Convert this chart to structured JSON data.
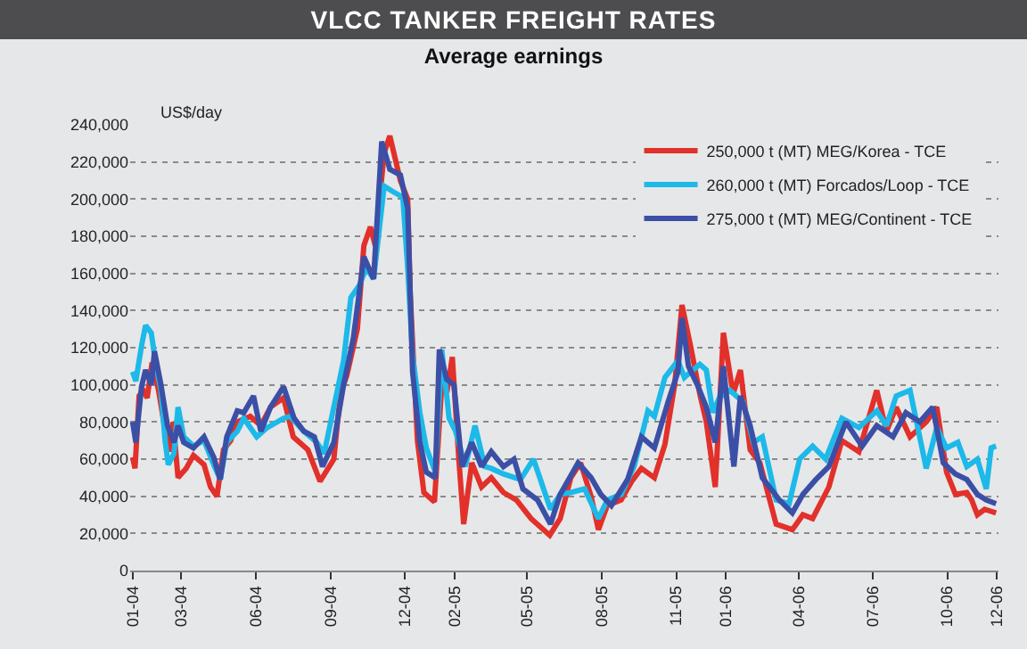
{
  "chart_data": {
    "type": "line",
    "title": "VLCC TANKER FREIGHT RATES",
    "subtitle": "Average earnings",
    "ylabel": "US$/day",
    "xlim": [
      "2003-12-29",
      "2006-12-03"
    ],
    "xticks": [
      {
        "value": "2004-01-01",
        "label": "01-04"
      },
      {
        "value": "2004-03-01",
        "label": "03-04"
      },
      {
        "value": "2004-06-01",
        "label": "06-04"
      },
      {
        "value": "2004-09-01",
        "label": "09-04"
      },
      {
        "value": "2004-12-01",
        "label": "12-04"
      },
      {
        "value": "2005-02-01",
        "label": "02-05"
      },
      {
        "value": "2005-05-01",
        "label": "05-05"
      },
      {
        "value": "2005-08-01",
        "label": "08-05"
      },
      {
        "value": "2005-11-01",
        "label": "11-05"
      },
      {
        "value": "2006-01-01",
        "label": "01-06"
      },
      {
        "value": "2006-04-01",
        "label": "04-06"
      },
      {
        "value": "2006-07-01",
        "label": "07-06"
      },
      {
        "value": "2006-10-01",
        "label": "10-06"
      },
      {
        "value": "2006-12-01",
        "label": "12-06"
      }
    ],
    "ylim": [
      0,
      240000
    ],
    "yticks": [
      {
        "value": 0,
        "label": "0"
      },
      {
        "value": 20000,
        "label": "20,000"
      },
      {
        "value": 40000,
        "label": "40,000"
      },
      {
        "value": 60000,
        "label": "60,000"
      },
      {
        "value": 80000,
        "label": "80,000"
      },
      {
        "value": 100000,
        "label": "100,000"
      },
      {
        "value": 120000,
        "label": "120,000"
      },
      {
        "value": 140000,
        "label": "140,000"
      },
      {
        "value": 160000,
        "label": "160,000"
      },
      {
        "value": 180000,
        "label": "180,000"
      },
      {
        "value": 200000,
        "label": "200,000"
      },
      {
        "value": 220000,
        "label": "220,000"
      },
      {
        "value": 240000,
        "label": "240,000"
      }
    ],
    "grid": "y",
    "legend": "top right",
    "marker": "none",
    "line_style": "solid",
    "series": [
      {
        "name": "250,000 t (MT) MEG/Korea - TCE",
        "color": "#e2302a",
        "x": [
          "2004-01-01",
          "2004-01-04",
          "2004-01-09",
          "2004-01-14",
          "2004-01-19",
          "2004-01-25",
          "2004-02-02",
          "2004-02-10",
          "2004-02-16",
          "2004-02-20",
          "2004-02-26",
          "2004-03-07",
          "2004-03-16",
          "2004-03-29",
          "2004-04-06",
          "2004-04-14",
          "2004-04-22",
          "2004-05-01",
          "2004-05-09",
          "2004-05-25",
          "2004-06-07",
          "2004-06-19",
          "2004-07-05",
          "2004-07-17",
          "2004-08-04",
          "2004-08-19",
          "2004-09-05",
          "2004-09-13",
          "2004-09-21",
          "2004-10-04",
          "2004-10-12",
          "2004-10-20",
          "2004-10-26",
          "2004-11-06",
          "2004-11-13",
          "2004-11-26",
          "2004-12-05",
          "2004-12-08",
          "2004-12-17",
          "2004-12-25",
          "2005-01-07",
          "2005-01-16",
          "2005-01-23",
          "2005-01-29",
          "2005-02-06",
          "2005-02-12",
          "2005-02-22",
          "2005-03-06",
          "2005-03-18",
          "2005-04-02",
          "2005-04-18",
          "2005-05-06",
          "2005-05-29",
          "2005-06-11",
          "2005-06-24",
          "2005-07-06",
          "2005-07-19",
          "2005-07-28",
          "2005-08-08",
          "2005-08-25",
          "2005-09-07",
          "2005-09-19",
          "2005-10-05",
          "2005-10-18",
          "2005-10-30",
          "2005-11-08",
          "2005-11-19",
          "2005-11-30",
          "2005-12-08",
          "2005-12-19",
          "2005-12-29",
          "2006-01-10",
          "2006-01-19",
          "2006-01-31",
          "2006-02-12",
          "2006-03-04",
          "2006-03-24",
          "2006-04-06",
          "2006-04-18",
          "2006-05-08",
          "2006-05-24",
          "2006-06-14",
          "2006-07-06",
          "2006-07-18",
          "2006-07-30",
          "2006-08-16",
          "2006-09-05",
          "2006-09-18",
          "2006-09-30",
          "2006-10-11",
          "2006-10-25",
          "2006-10-31",
          "2006-11-07",
          "2006-11-16",
          "2006-11-30"
        ],
        "values": [
          61000,
          55000,
          94000,
          97000,
          93000,
          112000,
          97000,
          76000,
          64000,
          80000,
          50000,
          55000,
          62000,
          57000,
          45000,
          40000,
          65000,
          70000,
          80000,
          83000,
          78000,
          88000,
          93000,
          72000,
          65000,
          48000,
          60000,
          95000,
          105000,
          130000,
          175000,
          185000,
          175000,
          225000,
          234000,
          210000,
          200000,
          150000,
          70000,
          42000,
          37000,
          100000,
          98000,
          115000,
          60000,
          25000,
          58000,
          45000,
          50000,
          42000,
          38000,
          28000,
          19000,
          28000,
          50000,
          58000,
          40000,
          22000,
          35000,
          38000,
          48000,
          55000,
          50000,
          68000,
          100000,
          143000,
          120000,
          95000,
          80000,
          45000,
          128000,
          95000,
          108000,
          65000,
          58000,
          25000,
          22000,
          30000,
          28000,
          45000,
          70000,
          64000,
          97000,
          75000,
          88000,
          72000,
          80000,
          88000,
          53000,
          41000,
          42000,
          38000,
          30000,
          33000,
          31000
        ]
      },
      {
        "name": "260,000 t (MT) Forcados/Loop - TCE",
        "color": "#1cb9e9",
        "x": [
          "2004-01-01",
          "2004-01-05",
          "2004-01-12",
          "2004-01-17",
          "2004-01-24",
          "2004-01-30",
          "2004-02-05",
          "2004-02-10",
          "2004-02-14",
          "2004-02-21",
          "2004-02-26",
          "2004-03-04",
          "2004-03-16",
          "2004-03-29",
          "2004-04-10",
          "2004-04-18",
          "2004-04-26",
          "2004-05-09",
          "2004-05-17",
          "2004-06-02",
          "2004-06-15",
          "2004-07-05",
          "2004-07-13",
          "2004-07-30",
          "2004-08-15",
          "2004-08-24",
          "2004-09-05",
          "2004-09-17",
          "2004-09-26",
          "2004-10-07",
          "2004-10-15",
          "2004-10-24",
          "2004-11-06",
          "2004-11-17",
          "2004-11-29",
          "2004-12-05",
          "2004-12-11",
          "2004-12-20",
          "2004-12-28",
          "2005-01-08",
          "2005-01-16",
          "2005-01-25",
          "2005-02-02",
          "2005-02-14",
          "2005-02-26",
          "2005-03-10",
          "2005-03-18",
          "2005-04-02",
          "2005-04-23",
          "2005-05-09",
          "2005-05-30",
          "2005-06-11",
          "2005-06-24",
          "2005-07-11",
          "2005-07-28",
          "2005-08-08",
          "2005-08-25",
          "2005-09-10",
          "2005-09-27",
          "2005-10-05",
          "2005-10-18",
          "2005-11-03",
          "2005-11-11",
          "2005-11-19",
          "2005-11-30",
          "2005-12-08",
          "2005-12-16",
          "2005-12-24",
          "2006-01-06",
          "2006-01-22",
          "2006-02-04",
          "2006-02-15",
          "2006-03-04",
          "2006-03-20",
          "2006-04-02",
          "2006-04-18",
          "2006-05-04",
          "2006-05-24",
          "2006-06-14",
          "2006-07-06",
          "2006-07-18",
          "2006-07-30",
          "2006-08-16",
          "2006-09-05",
          "2006-09-18",
          "2006-09-30",
          "2006-10-14",
          "2006-10-25",
          "2006-11-07",
          "2006-11-18",
          "2006-11-24",
          "2006-11-30"
        ],
        "values": [
          107000,
          102000,
          121000,
          132000,
          128000,
          110000,
          97000,
          70000,
          57000,
          63000,
          88000,
          72000,
          67000,
          70000,
          57000,
          49000,
          69000,
          75000,
          82000,
          72000,
          77000,
          82000,
          83000,
          75000,
          69000,
          63000,
          88000,
          113000,
          147000,
          154000,
          163000,
          157000,
          207000,
          204000,
          201000,
          163000,
          116000,
          85000,
          66000,
          53000,
          119000,
          82000,
          75000,
          56000,
          78000,
          56000,
          55000,
          52000,
          49000,
          60000,
          33000,
          41000,
          42000,
          44000,
          28000,
          38000,
          41000,
          56000,
          86000,
          83000,
          104000,
          113000,
          104000,
          107000,
          111000,
          108000,
          85000,
          93000,
          97000,
          91000,
          69000,
          72000,
          38000,
          36000,
          60000,
          67000,
          60000,
          82000,
          77000,
          86000,
          78000,
          94000,
          97000,
          55000,
          77000,
          66000,
          69000,
          56000,
          60000,
          44000,
          66000,
          67000
        ]
      },
      {
        "name": "275,000 t (MT) MEG/Continent - TCE",
        "color": "#3b4fa6",
        "x": [
          "2004-01-01",
          "2004-01-05",
          "2004-01-12",
          "2004-01-17",
          "2004-01-24",
          "2004-01-28",
          "2004-02-05",
          "2004-02-13",
          "2004-02-21",
          "2004-02-26",
          "2004-03-04",
          "2004-03-16",
          "2004-03-29",
          "2004-04-10",
          "2004-04-18",
          "2004-04-26",
          "2004-05-09",
          "2004-05-17",
          "2004-05-29",
          "2004-06-07",
          "2004-06-19",
          "2004-07-05",
          "2004-07-18",
          "2004-07-30",
          "2004-08-12",
          "2004-08-22",
          "2004-09-05",
          "2004-09-17",
          "2004-09-29",
          "2004-10-12",
          "2004-10-24",
          "2004-11-03",
          "2004-11-13",
          "2004-11-26",
          "2004-12-05",
          "2004-12-11",
          "2004-12-20",
          "2004-12-28",
          "2005-01-08",
          "2005-01-13",
          "2005-01-22",
          "2005-01-31",
          "2005-02-10",
          "2005-02-22",
          "2005-03-06",
          "2005-03-18",
          "2005-04-02",
          "2005-04-15",
          "2005-04-26",
          "2005-05-14",
          "2005-05-30",
          "2005-06-11",
          "2005-07-03",
          "2005-07-19",
          "2005-07-31",
          "2005-08-13",
          "2005-09-02",
          "2005-09-19",
          "2005-10-05",
          "2005-10-22",
          "2005-11-03",
          "2005-11-08",
          "2005-11-16",
          "2005-11-27",
          "2005-12-08",
          "2005-12-19",
          "2005-12-29",
          "2006-01-11",
          "2006-01-19",
          "2006-01-31",
          "2006-02-15",
          "2006-03-08",
          "2006-03-24",
          "2006-04-06",
          "2006-04-22",
          "2006-05-08",
          "2006-05-29",
          "2006-06-18",
          "2006-07-06",
          "2006-07-26",
          "2006-08-11",
          "2006-08-28",
          "2006-09-13",
          "2006-09-26",
          "2006-10-11",
          "2006-10-25",
          "2006-11-07",
          "2006-11-18",
          "2006-11-30"
        ],
        "values": [
          80000,
          69000,
          99000,
          108000,
          100000,
          118000,
          100000,
          78000,
          69000,
          78000,
          69000,
          66000,
          72000,
          61000,
          49000,
          72000,
          86000,
          85000,
          94000,
          75000,
          88000,
          99000,
          82000,
          75000,
          72000,
          56000,
          69000,
          100000,
          125000,
          169000,
          157000,
          231000,
          216000,
          213000,
          195000,
          107000,
          69000,
          53000,
          50000,
          119000,
          103000,
          100000,
          56000,
          69000,
          56000,
          64000,
          56000,
          60000,
          44000,
          38000,
          25000,
          41000,
          58000,
          50000,
          41000,
          35000,
          49000,
          72000,
          66000,
          91000,
          107000,
          136000,
          110000,
          100000,
          88000,
          69000,
          110000,
          56000,
          94000,
          78000,
          50000,
          38000,
          31000,
          41000,
          49000,
          56000,
          80000,
          67000,
          78000,
          72000,
          85000,
          80000,
          88000,
          58000,
          52000,
          49000,
          41000,
          38000,
          36000
        ]
      }
    ]
  }
}
